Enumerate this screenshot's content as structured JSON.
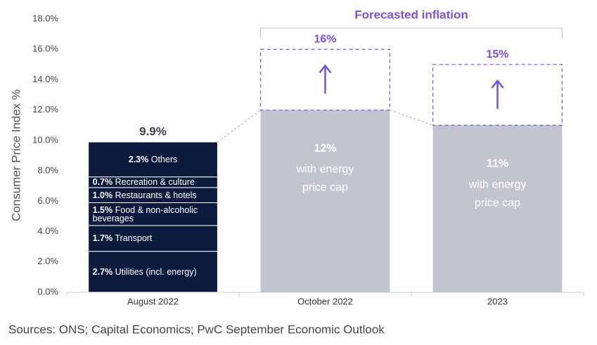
{
  "chart_data": {
    "type": "bar",
    "y_label": "Consumer Price Index %",
    "categories": [
      "August 2022",
      "October 2022",
      "2023"
    ],
    "ylim": [
      0,
      18
    ],
    "yticks": [
      {
        "value": 0,
        "label": "0.0%"
      },
      {
        "value": 2,
        "label": "2.0%"
      },
      {
        "value": 4,
        "label": "4.0%"
      },
      {
        "value": 6,
        "label": "6.0%"
      },
      {
        "value": 8,
        "label": "8.0%"
      },
      {
        "value": 10,
        "label": "10.0%"
      },
      {
        "value": 12,
        "label": "12.0%"
      },
      {
        "value": 14,
        "label": "14.0%"
      },
      {
        "value": 16,
        "label": "16.0%"
      },
      {
        "value": 18,
        "label": "18.0%"
      }
    ],
    "series": [
      {
        "name": "Utilities (incl. energy)",
        "color": "#0b1a3d",
        "values": [
          2.7,
          null,
          null
        ],
        "value_labels": [
          "2.7%",
          null,
          null
        ]
      },
      {
        "name": "Transport",
        "color": "#0b1a3d",
        "values": [
          1.7,
          null,
          null
        ],
        "value_labels": [
          "1.7%",
          null,
          null
        ]
      },
      {
        "name": "Food & non-alcoholic beverages",
        "color": "#0b1a3d",
        "values": [
          1.5,
          null,
          null
        ],
        "value_labels": [
          "1.5%",
          null,
          null
        ]
      },
      {
        "name": "Restaurants & hotels",
        "color": "#0b1a3d",
        "values": [
          1.0,
          null,
          null
        ],
        "value_labels": [
          "1.0%",
          null,
          null
        ]
      },
      {
        "name": "Recreation & culture",
        "color": "#0b1a3d",
        "values": [
          0.7,
          null,
          null
        ],
        "value_labels": [
          "0.7%",
          null,
          null
        ]
      },
      {
        "name": "Others",
        "color": "#0b1a3d",
        "values": [
          2.3,
          null,
          null
        ],
        "value_labels": [
          "2.3%",
          null,
          null
        ]
      }
    ],
    "totals": {
      "values": [
        9.9,
        null,
        null
      ],
      "value_labels": [
        "9.9%",
        null,
        null
      ],
      "color": "#3d4150"
    },
    "price_cap": {
      "name": "with energy price cap",
      "color": "#c2c5cf",
      "values": [
        null,
        12,
        11
      ],
      "value_labels": [
        null,
        "12%",
        "11%"
      ]
    },
    "forecast": {
      "name": "Forecasted inflation",
      "color": "#7b4fe0",
      "values": [
        null,
        16,
        15
      ],
      "value_labels": [
        null,
        "16%",
        "15%"
      ]
    },
    "source": "Sources: ONS; Capital Economics; PwC September Economic Outlook"
  }
}
